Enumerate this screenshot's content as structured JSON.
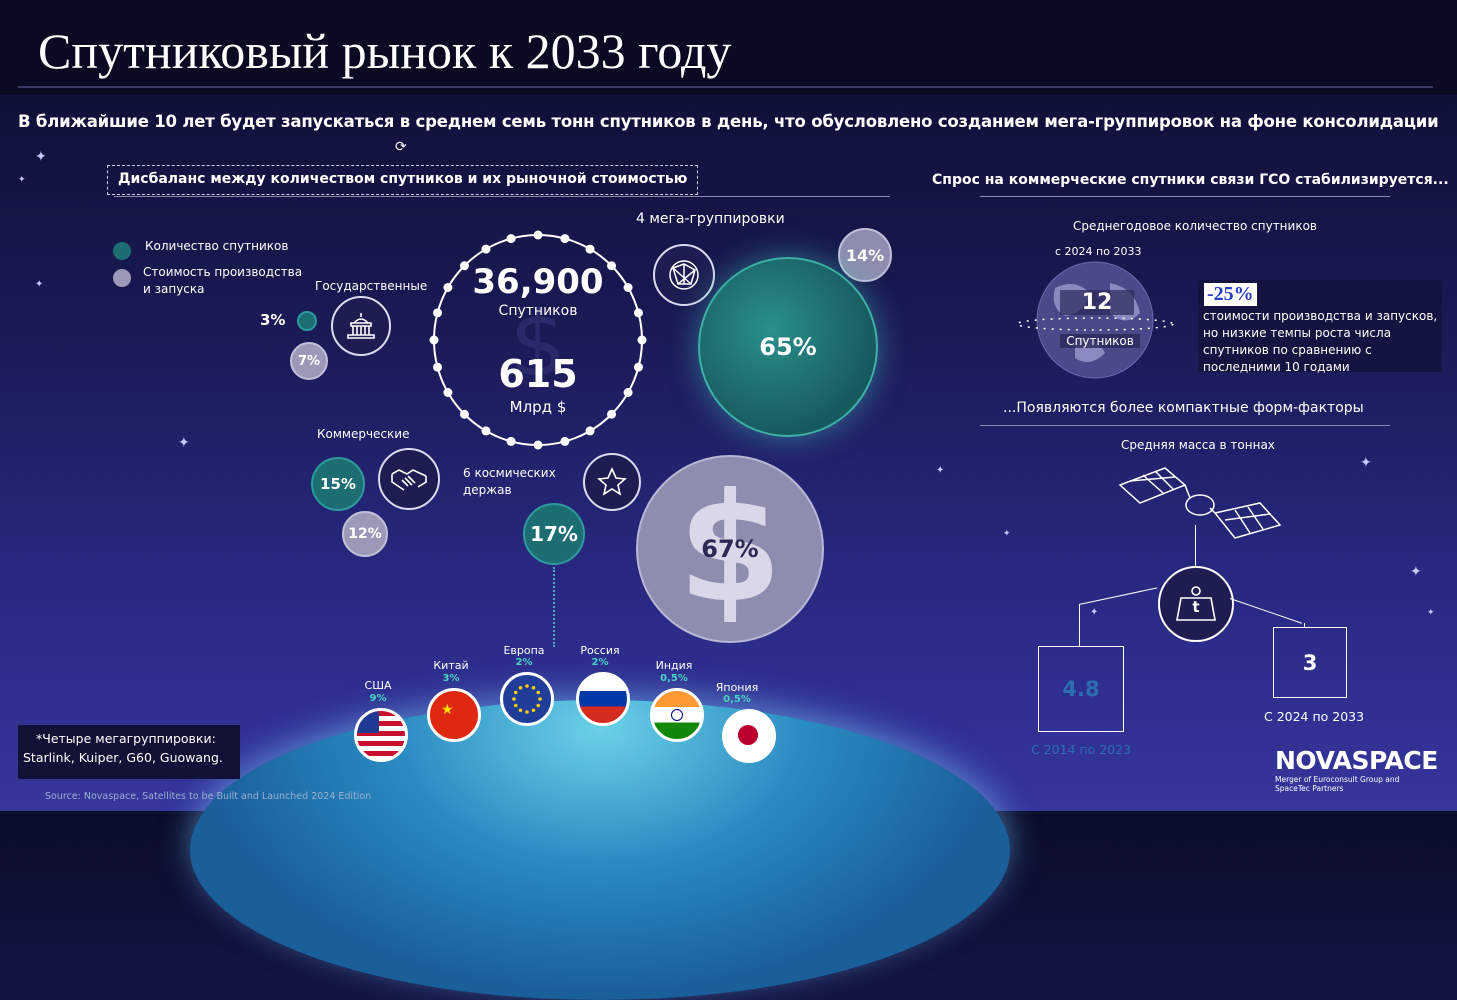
{
  "title": "Спутниковый рынок к 2033 году",
  "subtitle": "В ближайшие 10 лет будет запускаться в среднем семь тонн спутников в день, что обусловлено созданием мега-группировок на фоне консолидации",
  "left": {
    "section_title": "Дисбаланс между количеством спутников и их рыночной стоимостью",
    "legend": [
      "Количество спутников",
      "Стоимость производства и запуска"
    ],
    "center": {
      "count": "36,900",
      "count_label": "Спутников",
      "value": "615",
      "value_label": "Млрд $"
    },
    "government": {
      "label": "Государственные",
      "count_pct": "3%",
      "value_pct": "7%"
    },
    "commercial": {
      "label": "Коммерческие",
      "count_pct": "15%",
      "value_pct": "12%"
    },
    "megaconstellations": {
      "label": "4 мега-группировки",
      "count_pct": "65%",
      "value_pct": "14%"
    },
    "space_powers": {
      "label": "6 космических держав",
      "count_pct": "17%",
      "value_pct": "67%"
    },
    "countries": [
      {
        "name": "США",
        "pct": "9%"
      },
      {
        "name": "Китай",
        "pct": "3%"
      },
      {
        "name": "Европа",
        "pct": "2%"
      },
      {
        "name": "Россия",
        "pct": "2%"
      },
      {
        "name": "Индия",
        "pct": "0,5%"
      },
      {
        "name": "Япония",
        "pct": "0,5%"
      }
    ],
    "footnote_line1": "*Четыре мегагруппировки:",
    "footnote_line2": "Starlink, Kuiper, G60, Guowang.",
    "source": "Source: Novaspace, Satellites to be Built and Launched 2024 Edition"
  },
  "right": {
    "section_title": "Спрос на коммерческие спутники связи ГСО стабилизируется...",
    "avg_label": "Среднегодовое количество спутников",
    "period": "с 2024 по 2033",
    "count": "12",
    "count_label": "Спутников",
    "change": "-25%",
    "change_text": "стоимости производства и запусков, но низкие темпы роста числа спутников по сравнению с последними 10 годами",
    "section2_title": "...Появляются более компактные форм-факторы",
    "mass_label": "Средняя масса в тоннах",
    "scale_icon_text": "t",
    "old_value": "4.8",
    "old_period": "С 2014 по 2023",
    "new_value": "3",
    "new_period": "С 2024 по 2033"
  },
  "brand": {
    "name": "NOVASPACE",
    "tagline": "Merger of Euroconsult Group and SpaceTec Partners"
  },
  "colors": {
    "teal": "#1c6e73",
    "grey": "#9a9ab8",
    "change_blue": "#2a3ec4",
    "old_value_blue": "#2c6fb0"
  }
}
